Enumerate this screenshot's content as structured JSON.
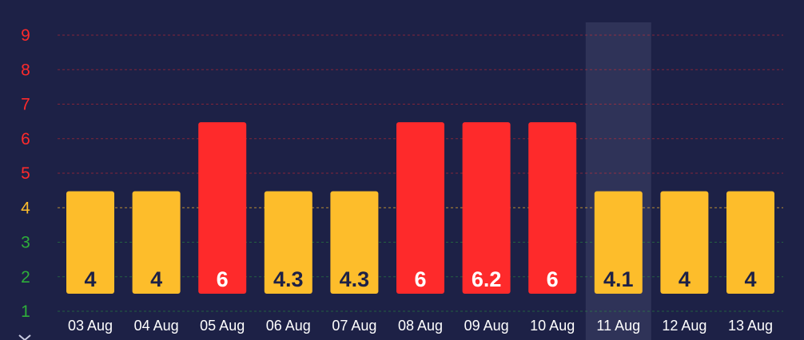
{
  "chart_data": {
    "type": "bar",
    "categories": [
      "03 Aug",
      "04 Aug",
      "05 Aug",
      "06 Aug",
      "07 Aug",
      "08 Aug",
      "09 Aug",
      "10 Aug",
      "11 Aug",
      "12 Aug",
      "13 Aug"
    ],
    "values": [
      4,
      4,
      6,
      4.3,
      4.3,
      6,
      6.2,
      6,
      4.1,
      4,
      4
    ],
    "bar_levels": [
      4,
      4,
      6,
      4,
      4,
      6,
      6,
      6,
      4,
      4,
      4
    ],
    "y_ticks": [
      "1",
      "2",
      "3",
      "4",
      "5",
      "6",
      "7",
      "8",
      "9"
    ],
    "ylim": [
      1,
      9
    ],
    "highlighted_category": "11 Aug",
    "grid": true,
    "colors": {
      "background": "#1d2146",
      "bar_high": "#fe2a2b",
      "bar_mid": "#fdbd2b",
      "label_on_high": "#ffffff",
      "label_on_mid": "#1d2146",
      "tick_low": "#2eae3a",
      "tick_mid": "#fdbd2b",
      "tick_high": "#fe2a2b",
      "x_label": "#ffffff",
      "highlight_band": "#2f3358"
    }
  },
  "scroll_hint_icon": "chevron-down-icon"
}
